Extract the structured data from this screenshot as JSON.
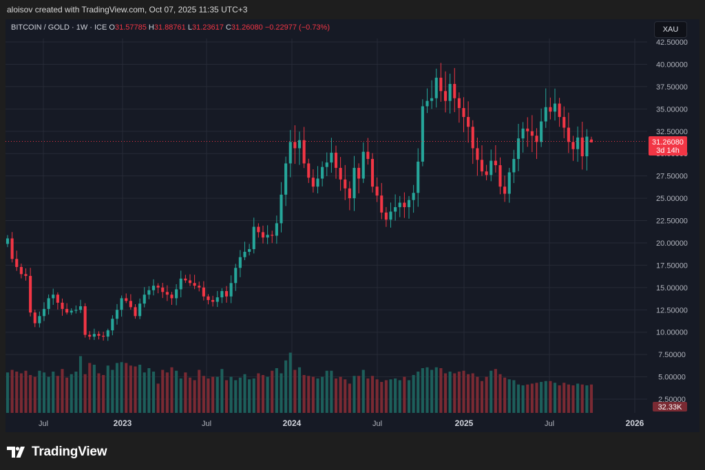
{
  "header": {
    "credit": "aloisov created with TradingView.com, Oct 07, 2025 11:35 UTC+3"
  },
  "legend": {
    "symbol": "BITCOIN / GOLD · 1W · ICE",
    "o_label": "O",
    "o": "31.57785",
    "h_label": "H",
    "h": "31.88761",
    "l_label": "L",
    "l": "31.23617",
    "c_label": "C",
    "c": "31.26080",
    "change": "−0.22977 (−0.73%)"
  },
  "symbol_box": "XAU",
  "price_tag": {
    "price": "31.26080",
    "countdown": "3d 14h"
  },
  "volume_tag": "32.33K",
  "footer": {
    "brand": "TradingView",
    "logo_icon": "tradingview-logo-icon"
  },
  "colors": {
    "up": "#26a69a",
    "down": "#f23645",
    "vol_up": "#1d5f5b",
    "vol_down": "#7a2a33",
    "grid": "#262a36",
    "background": "#161a25"
  },
  "chart_data": {
    "type": "candlestick",
    "title": "BITCOIN / GOLD · 1W · ICE",
    "y_axis": {
      "ticks": [
        "42.50000",
        "40.00000",
        "37.50000",
        "35.00000",
        "32.50000",
        "30.00000",
        "27.50000",
        "25.00000",
        "22.50000",
        "20.00000",
        "17.50000",
        "15.00000",
        "12.50000",
        "10.00000",
        "7.50000",
        "5.00000",
        "2.50000"
      ],
      "ylim": [
        2.5,
        42.5
      ]
    },
    "x_axis": {
      "ticks": [
        {
          "label": "Jul",
          "major": false
        },
        {
          "label": "2023",
          "major": true
        },
        {
          "label": "Jul",
          "major": false
        },
        {
          "label": "2024",
          "major": true
        },
        {
          "label": "Jul",
          "major": false
        },
        {
          "label": "2025",
          "major": true
        },
        {
          "label": "Jul",
          "major": false
        },
        {
          "label": "2026",
          "major": true
        }
      ]
    },
    "last_price": 31.2608,
    "weekly_close": [
      20.5,
      18.2,
      17.3,
      16.5,
      16.3,
      12.2,
      11.0,
      11.8,
      12.6,
      13.8,
      14.2,
      13.3,
      12.6,
      12.2,
      12.4,
      12.5,
      12.9,
      9.7,
      9.5,
      9.8,
      9.6,
      9.5,
      10.2,
      11.5,
      12.5,
      13.8,
      13.5,
      12.8,
      11.8,
      13.2,
      14.2,
      14.7,
      15.2,
      15.0,
      14.5,
      14.2,
      13.8,
      14.8,
      16.0,
      15.8,
      15.5,
      15.2,
      15.0,
      14.0,
      13.6,
      13.4,
      13.9,
      14.6,
      14.0,
      15.5,
      17.2,
      18.4,
      19.0,
      19.3,
      21.8,
      21.2,
      20.6,
      20.9,
      20.8,
      22.2,
      25.4,
      28.9,
      31.3,
      30.6,
      31.5,
      28.9,
      27.3,
      26.3,
      27.2,
      28.5,
      29.0,
      30.1,
      28.4,
      27.1,
      26.1,
      25.0,
      28.4,
      27.2,
      30.2,
      29.4,
      26.3,
      25.3,
      23.4,
      22.6,
      23.5,
      24.0,
      24.5,
      24.0,
      24.8,
      25.6,
      29.1,
      35.3,
      35.9,
      36.2,
      38.5,
      37.0,
      35.9,
      37.8,
      36.2,
      35.1,
      34.1,
      33.0,
      30.6,
      29.3,
      28.0,
      27.6,
      29.2,
      28.7,
      26.3,
      25.5,
      27.9,
      29.4,
      31.7,
      32.8,
      32.5,
      32.0,
      31.3,
      33.6,
      35.2,
      34.7,
      35.6,
      34.1,
      32.9,
      31.3,
      30.5,
      31.8,
      29.7,
      31.9,
      31.26
    ],
    "volume_relative": [
      4.7,
      5.0,
      4.8,
      4.6,
      4.9,
      4.4,
      4.2,
      4.9,
      4.7,
      4.2,
      4.8,
      4.3,
      5.1,
      4.1,
      4.5,
      4.8,
      6.6,
      4.5,
      5.8,
      5.6,
      4.6,
      4.4,
      5.5,
      5.0,
      5.8,
      5.9,
      5.8,
      5.5,
      5.4,
      5.6,
      4.7,
      5.2,
      4.8,
      3.4,
      5.0,
      4.7,
      5.3,
      4.9,
      4.0,
      4.7,
      4.1,
      3.8,
      5.0,
      4.3,
      4.0,
      4.2,
      4.2,
      5.1,
      3.8,
      4.2,
      3.8,
      4.1,
      4.5,
      3.9,
      4.0,
      4.6,
      4.4,
      4.2,
      4.9,
      5.2,
      4.6,
      6.1,
      7.0,
      5.0,
      5.3,
      4.4,
      4.3,
      4.2,
      4.0,
      4.2,
      4.9,
      4.9,
      4.0,
      4.2,
      3.9,
      3.4,
      4.3,
      4.3,
      5.0,
      4.0,
      4.3,
      3.9,
      3.6,
      3.8,
      3.9,
      4.0,
      3.8,
      4.2,
      3.8,
      4.4,
      4.8,
      5.2,
      5.3,
      5.0,
      5.3,
      5.2,
      4.6,
      4.8,
      4.6,
      4.8,
      4.9,
      4.5,
      4.6,
      4.2,
      3.7,
      4.2,
      4.9,
      5.1,
      4.5,
      4.1,
      3.9,
      3.8,
      3.3,
      3.2,
      3.3,
      3.4,
      3.5,
      3.6,
      3.7,
      3.7,
      3.5,
      3.2,
      3.5,
      3.3,
      3.2,
      3.4,
      3.3,
      3.2,
      3.3
    ]
  }
}
